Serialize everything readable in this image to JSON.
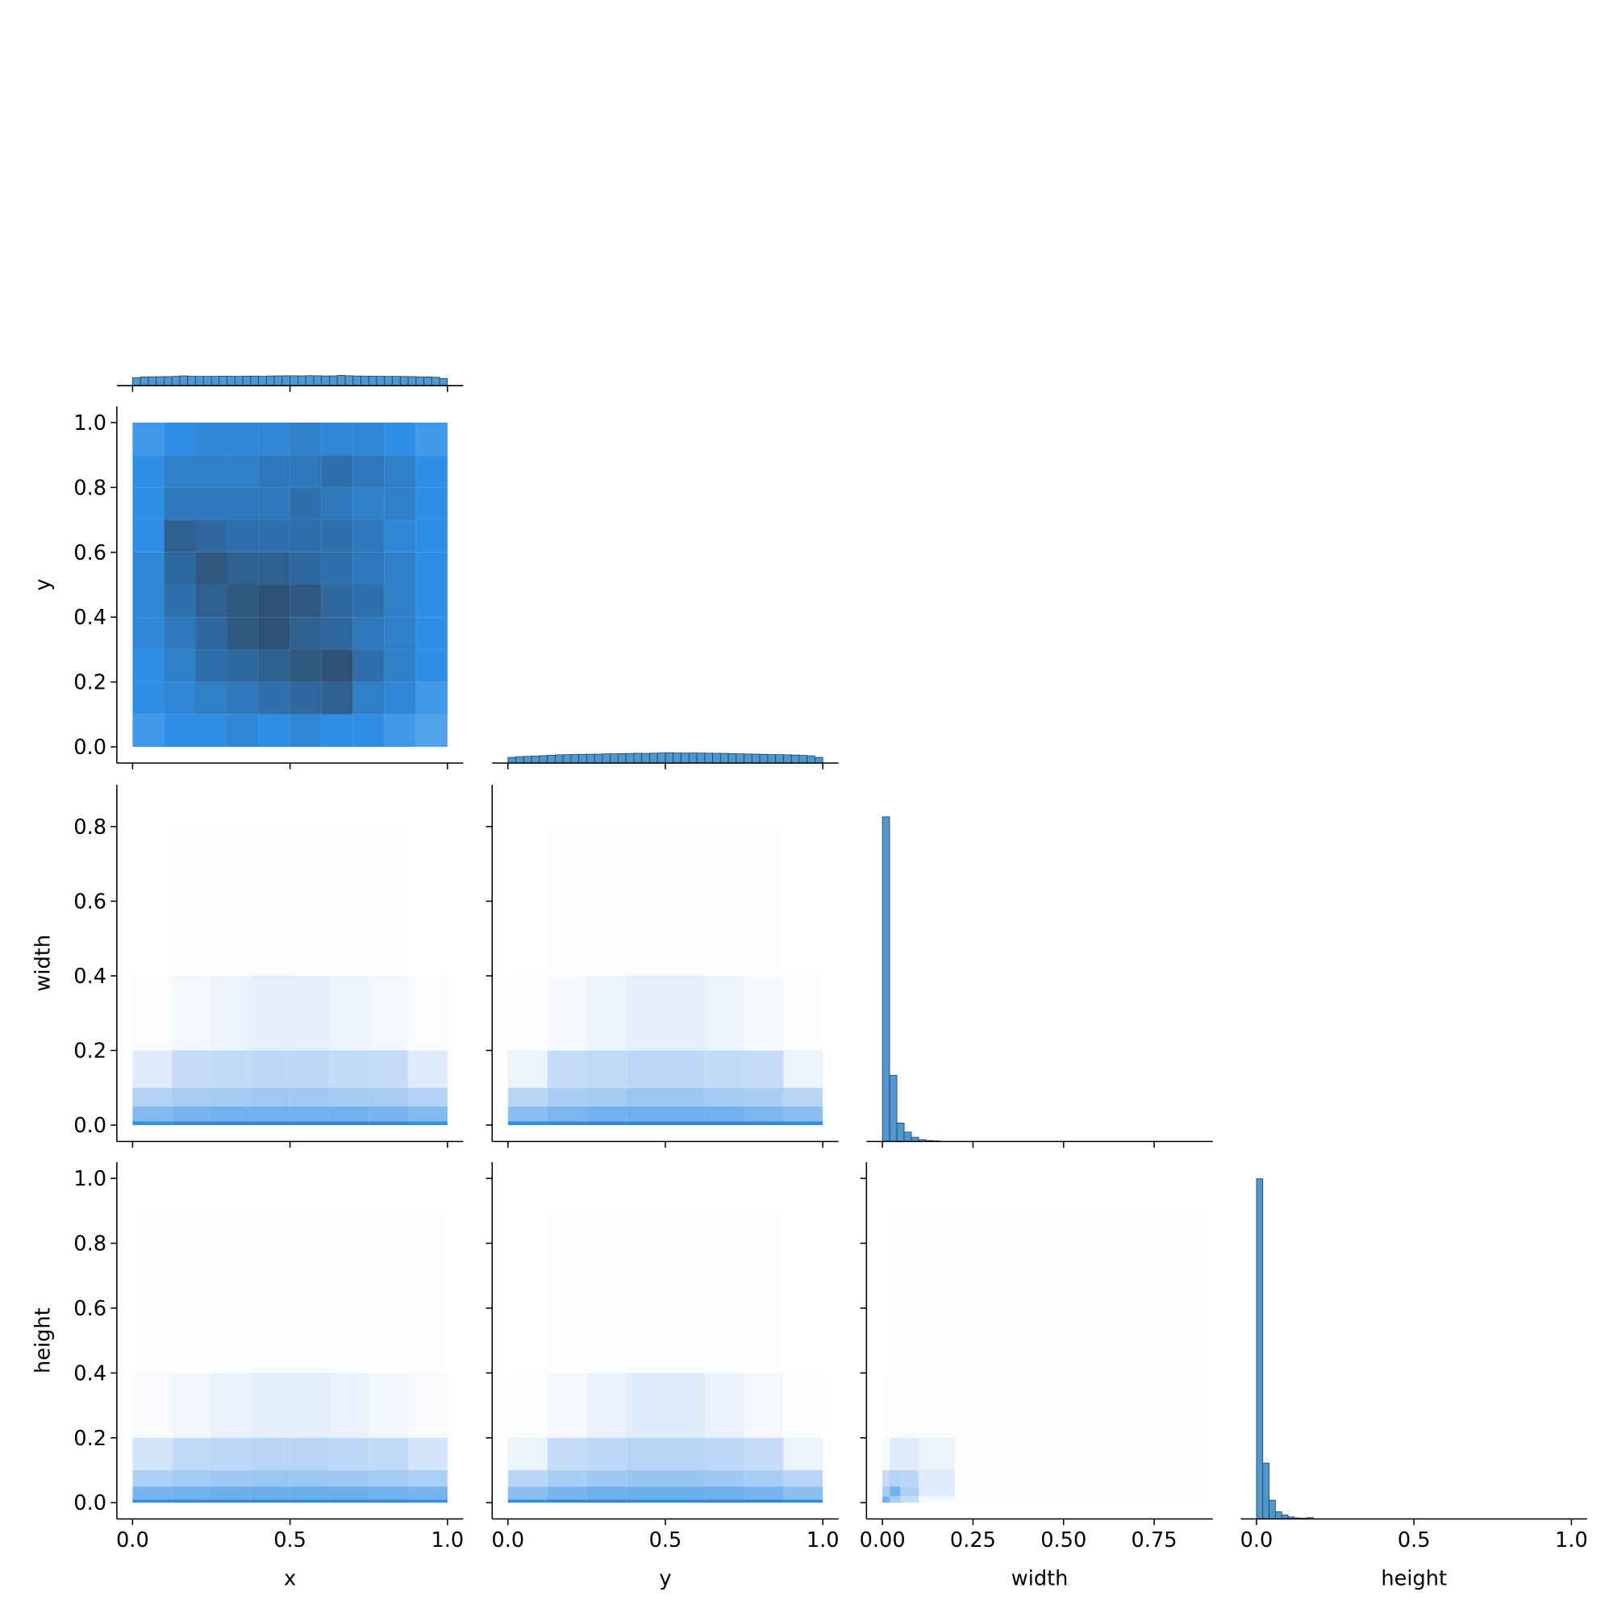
{
  "chart_data": {
    "type": "pairplot",
    "color": "#5096cf",
    "edgecolor": "#1f3b57",
    "cmap": [
      "#d4e4fa",
      "#2f8fe6",
      "#2f4156"
    ],
    "variables": [
      {
        "name": "x",
        "lim": [
          -0.05,
          1.05
        ],
        "xticks": [
          {
            "value": 0,
            "label": "0.0"
          },
          0.5,
          {
            "value": 1,
            "label": "1.0"
          }
        ]
      },
      {
        "name": "y",
        "lim": [
          -0.05,
          1.05
        ],
        "xticks": [
          {
            "value": 0,
            "label": "0.0"
          },
          0.5,
          {
            "value": 1,
            "label": "1.0"
          }
        ],
        "yticks": [
          {
            "value": 0,
            "label": "0.0"
          },
          0.2,
          0.4,
          0.6,
          0.8,
          {
            "value": 1,
            "label": "1.0"
          }
        ]
      },
      {
        "name": "width",
        "lim": [
          -0.044,
          0.912
        ],
        "xticks": [
          {
            "value": 0,
            "label": "0.00"
          },
          {
            "value": 0.25,
            "label": "0.25"
          },
          {
            "value": 0.5,
            "label": "0.50"
          },
          {
            "value": 0.75,
            "label": "0.75"
          }
        ],
        "yticks": [
          {
            "value": 0,
            "label": "0.0"
          },
          0.2,
          0.4,
          0.6,
          0.8
        ]
      },
      {
        "name": "height",
        "lim": [
          -0.05,
          1.05
        ],
        "xticks": [
          {
            "value": 0,
            "label": "0.0"
          },
          0.5,
          {
            "value": 1,
            "label": "1.0"
          }
        ],
        "yticks": [
          {
            "value": 0,
            "label": "0.0"
          },
          0.2,
          0.4,
          0.6,
          0.8,
          {
            "value": 1,
            "label": "1.0"
          }
        ]
      }
    ],
    "diagonal": [
      {
        "bins": [
          0,
          0.025,
          0.05,
          0.075,
          0.1,
          0.125,
          0.15,
          0.175,
          0.2,
          0.225,
          0.25,
          0.275,
          0.3,
          0.325,
          0.35,
          0.375,
          0.4,
          0.425,
          0.45,
          0.475,
          0.5,
          0.525,
          0.55,
          0.575,
          0.6,
          0.625,
          0.65,
          0.675,
          0.7,
          0.725,
          0.75,
          0.775,
          0.8,
          0.825,
          0.85,
          0.875,
          0.9,
          0.925,
          0.95,
          0.975,
          1
        ],
        "values": [
          0.78,
          0.85,
          0.86,
          0.87,
          0.88,
          0.9,
          0.95,
          0.92,
          0.9,
          0.91,
          0.9,
          0.92,
          0.91,
          0.9,
          0.92,
          0.93,
          0.91,
          0.94,
          0.95,
          0.96,
          0.96,
          0.95,
          0.97,
          0.96,
          0.94,
          0.95,
          1.0,
          0.96,
          0.94,
          0.93,
          0.92,
          0.91,
          0.9,
          0.9,
          0.89,
          0.88,
          0.86,
          0.85,
          0.82,
          0.7
        ]
      },
      {
        "bins": [
          0,
          0.025,
          0.05,
          0.075,
          0.1,
          0.125,
          0.15,
          0.175,
          0.2,
          0.225,
          0.25,
          0.275,
          0.3,
          0.325,
          0.35,
          0.375,
          0.4,
          0.425,
          0.45,
          0.475,
          0.5,
          0.525,
          0.55,
          0.575,
          0.6,
          0.625,
          0.65,
          0.675,
          0.7,
          0.725,
          0.75,
          0.775,
          0.8,
          0.825,
          0.85,
          0.875,
          0.9,
          0.925,
          0.95,
          0.975,
          1
        ],
        "values": [
          0.55,
          0.62,
          0.65,
          0.68,
          0.72,
          0.76,
          0.8,
          0.82,
          0.83,
          0.85,
          0.86,
          0.87,
          0.89,
          0.9,
          0.92,
          0.93,
          0.95,
          0.94,
          0.96,
          0.98,
          1.0,
          0.98,
          0.97,
          0.98,
          0.97,
          0.96,
          0.95,
          0.94,
          0.92,
          0.9,
          0.88,
          0.87,
          0.85,
          0.83,
          0.82,
          0.8,
          0.78,
          0.75,
          0.7,
          0.55
        ]
      },
      {
        "bins": [
          0,
          0.02,
          0.04,
          0.06,
          0.08,
          0.1,
          0.12,
          0.14,
          0.16
        ],
        "values": [
          1.0,
          0.204,
          0.057,
          0.029,
          0.013,
          0.006,
          0.003,
          0.002
        ]
      },
      {
        "bins": [
          0,
          0.02,
          0.04,
          0.06,
          0.08,
          0.1,
          0.12,
          0.14,
          0.16,
          0.18
        ],
        "values": [
          1.0,
          0.164,
          0.055,
          0.021,
          0.012,
          0.006,
          0.003,
          0.002,
          0.004
        ]
      }
    ],
    "heatmaps": [
      {
        "x_var": "x",
        "y_var": "y",
        "x_bins": [
          0,
          0.1,
          0.2,
          0.3,
          0.4,
          0.5,
          0.6,
          0.7,
          0.8,
          0.9,
          1
        ],
        "y_bins": [
          0,
          0.1,
          0.2,
          0.3,
          0.4,
          0.5,
          0.6,
          0.7,
          0.8,
          0.9,
          1
        ],
        "values": [
          [
            0.45,
            0.5,
            0.5,
            0.55,
            0.5,
            0.55,
            0.5,
            0.5,
            0.45,
            0.4
          ],
          [
            0.5,
            0.55,
            0.6,
            0.65,
            0.7,
            0.75,
            0.8,
            0.6,
            0.55,
            0.45
          ],
          [
            0.5,
            0.6,
            0.7,
            0.75,
            0.8,
            0.85,
            0.9,
            0.7,
            0.6,
            0.5
          ],
          [
            0.55,
            0.65,
            0.75,
            0.85,
            0.9,
            0.8,
            0.75,
            0.65,
            0.6,
            0.5
          ],
          [
            0.55,
            0.7,
            0.8,
            0.85,
            0.9,
            0.85,
            0.75,
            0.7,
            0.6,
            0.5
          ],
          [
            0.55,
            0.75,
            0.85,
            0.8,
            0.8,
            0.75,
            0.7,
            0.65,
            0.6,
            0.5
          ],
          [
            0.5,
            0.8,
            0.75,
            0.7,
            0.7,
            0.7,
            0.7,
            0.65,
            0.55,
            0.5
          ],
          [
            0.5,
            0.65,
            0.65,
            0.65,
            0.65,
            0.7,
            0.65,
            0.6,
            0.6,
            0.5
          ],
          [
            0.5,
            0.6,
            0.6,
            0.6,
            0.65,
            0.65,
            0.7,
            0.65,
            0.6,
            0.5
          ],
          [
            0.45,
            0.5,
            0.55,
            0.55,
            0.55,
            0.6,
            0.55,
            0.55,
            0.5,
            0.45
          ]
        ]
      },
      {
        "x_var": "x",
        "y_var": "width",
        "x_bins": [
          0,
          0.125,
          0.25,
          0.375,
          0.5,
          0.625,
          0.75,
          0.875,
          1
        ],
        "y_bins": [
          0,
          0.01,
          0.05,
          0.1,
          0.2,
          0.4,
          0.8
        ],
        "values": [
          [
            0.5,
            0.55,
            0.55,
            0.55,
            0.55,
            0.55,
            0.55,
            0.5
          ],
          [
            0.25,
            0.28,
            0.3,
            0.3,
            0.3,
            0.3,
            0.28,
            0.25
          ],
          [
            0.1,
            0.14,
            0.15,
            0.16,
            0.16,
            0.15,
            0.14,
            0.1
          ],
          [
            0.03,
            0.05,
            0.06,
            0.07,
            0.07,
            0.06,
            0.05,
            0.03
          ],
          [
            0.005,
            0.012,
            0.02,
            0.025,
            0.025,
            0.02,
            0.012,
            0.005
          ],
          [
            0,
            0.001,
            0.003,
            0.005,
            0.006,
            0.004,
            0.002,
            0
          ]
        ]
      },
      {
        "x_var": "y",
        "y_var": "width",
        "x_bins": [
          0,
          0.125,
          0.25,
          0.375,
          0.5,
          0.625,
          0.75,
          0.875,
          1
        ],
        "y_bins": [
          0,
          0.01,
          0.05,
          0.1,
          0.2,
          0.4,
          0.8
        ],
        "values": [
          [
            0.5,
            0.55,
            0.55,
            0.55,
            0.55,
            0.55,
            0.55,
            0.5
          ],
          [
            0.22,
            0.27,
            0.3,
            0.31,
            0.31,
            0.3,
            0.27,
            0.22
          ],
          [
            0.08,
            0.13,
            0.15,
            0.17,
            0.17,
            0.15,
            0.13,
            0.08
          ],
          [
            0.02,
            0.05,
            0.06,
            0.07,
            0.07,
            0.06,
            0.05,
            0.02
          ],
          [
            0.004,
            0.01,
            0.02,
            0.025,
            0.025,
            0.02,
            0.01,
            0.004
          ],
          [
            0,
            0.001,
            0.003,
            0.005,
            0.005,
            0.004,
            0.002,
            0
          ]
        ]
      },
      {
        "x_var": "x",
        "y_var": "height",
        "x_bins": [
          0,
          0.125,
          0.25,
          0.375,
          0.5,
          0.625,
          0.75,
          0.875,
          1
        ],
        "y_bins": [
          0,
          0.01,
          0.05,
          0.1,
          0.2,
          0.4,
          0.9
        ],
        "values": [
          [
            0.5,
            0.55,
            0.55,
            0.55,
            0.55,
            0.55,
            0.55,
            0.5
          ],
          [
            0.28,
            0.3,
            0.32,
            0.32,
            0.32,
            0.32,
            0.3,
            0.28
          ],
          [
            0.12,
            0.15,
            0.16,
            0.17,
            0.17,
            0.16,
            0.15,
            0.12
          ],
          [
            0.04,
            0.06,
            0.07,
            0.08,
            0.08,
            0.07,
            0.06,
            0.04
          ],
          [
            0.008,
            0.015,
            0.022,
            0.028,
            0.028,
            0.022,
            0.015,
            0.008
          ],
          [
            0.001,
            0.002,
            0.003,
            0.004,
            0.004,
            0.003,
            0.002,
            0.001
          ]
        ]
      },
      {
        "x_var": "y",
        "y_var": "height",
        "x_bins": [
          0,
          0.125,
          0.25,
          0.375,
          0.5,
          0.625,
          0.75,
          0.875,
          1
        ],
        "y_bins": [
          0,
          0.01,
          0.05,
          0.1,
          0.2,
          0.4,
          0.9
        ],
        "values": [
          [
            0.5,
            0.55,
            0.55,
            0.55,
            0.55,
            0.55,
            0.55,
            0.5
          ],
          [
            0.22,
            0.28,
            0.31,
            0.32,
            0.32,
            0.31,
            0.28,
            0.22
          ],
          [
            0.08,
            0.13,
            0.16,
            0.18,
            0.18,
            0.16,
            0.13,
            0.08
          ],
          [
            0.02,
            0.05,
            0.07,
            0.09,
            0.09,
            0.07,
            0.05,
            0.02
          ],
          [
            0.003,
            0.012,
            0.022,
            0.03,
            0.03,
            0.022,
            0.012,
            0.003
          ],
          [
            0,
            0.001,
            0.003,
            0.006,
            0.006,
            0.003,
            0.001,
            0
          ]
        ]
      },
      {
        "x_var": "width",
        "y_var": "height",
        "x_bins": [
          0,
          0.02,
          0.05,
          0.1,
          0.2,
          0.4,
          0.9
        ],
        "y_bins": [
          0,
          0.02,
          0.05,
          0.1,
          0.2,
          0.4,
          0.9
        ],
        "values": [
          [
            0.3,
            0.15,
            0.05,
            0.01,
            0.002,
            0
          ],
          [
            0.15,
            0.3,
            0.12,
            0.03,
            0.005,
            0.001
          ],
          [
            0.05,
            0.1,
            0.08,
            0.03,
            0.006,
            0.001
          ],
          [
            0.01,
            0.03,
            0.03,
            0.02,
            0.006,
            0.002
          ],
          [
            0.002,
            0.005,
            0.006,
            0.005,
            0.004,
            0.002
          ],
          [
            0,
            0.001,
            0.002,
            0.002,
            0.002,
            0.001
          ]
        ]
      }
    ]
  }
}
